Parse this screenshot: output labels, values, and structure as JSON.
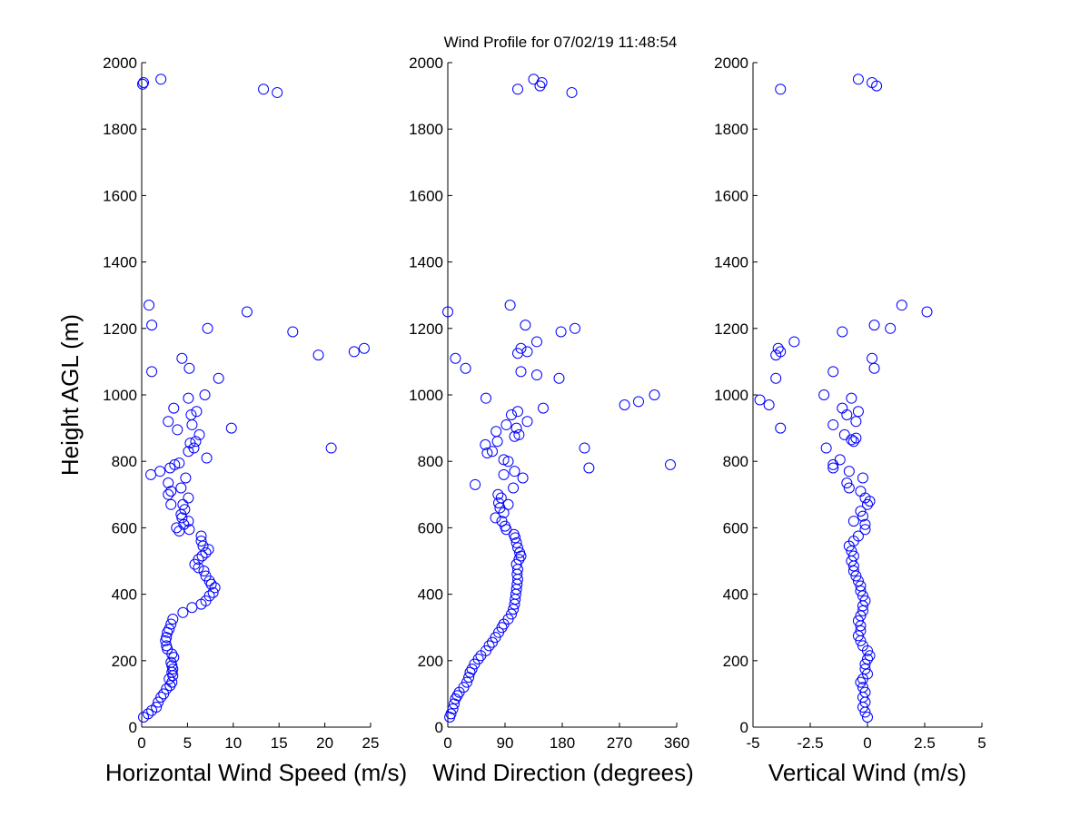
{
  "figure": {
    "title": "Wind Profile for  07/02/19 11:48:54"
  },
  "chart_data": [
    {
      "type": "scatter",
      "title": "",
      "xlabel": "Horizontal Wind Speed (m/s)",
      "ylabel": "Height AGL (m)",
      "xlim": [
        0,
        25
      ],
      "ylim": [
        0,
        2000
      ],
      "xticks": [
        0,
        5,
        10,
        15,
        20,
        25
      ],
      "xtick_labels": [
        "0",
        "5",
        "10",
        "15",
        "20",
        "25"
      ],
      "yticks": [
        0,
        200,
        400,
        600,
        800,
        1000,
        1200,
        1400,
        1600,
        1800,
        2000
      ],
      "ytick_labels": [
        "0",
        "200",
        "400",
        "600",
        "800",
        "1000",
        "1200",
        "1400",
        "1600",
        "1800",
        "2000"
      ],
      "grid": false,
      "marker_color": "#0000ff",
      "points": [
        [
          0.2,
          30
        ],
        [
          0.7,
          40
        ],
        [
          1.1,
          50
        ],
        [
          1.6,
          60
        ],
        [
          1.8,
          75
        ],
        [
          2.1,
          90
        ],
        [
          2.4,
          100
        ],
        [
          2.7,
          115
        ],
        [
          3.1,
          125
        ],
        [
          3.3,
          135
        ],
        [
          3.0,
          145
        ],
        [
          3.4,
          155
        ],
        [
          3.3,
          165
        ],
        [
          3.4,
          175
        ],
        [
          3.3,
          185
        ],
        [
          3.2,
          195
        ],
        [
          3.5,
          210
        ],
        [
          3.3,
          220
        ],
        [
          2.8,
          235
        ],
        [
          2.7,
          245
        ],
        [
          2.6,
          260
        ],
        [
          2.7,
          270
        ],
        [
          2.8,
          285
        ],
        [
          3.0,
          295
        ],
        [
          3.2,
          310
        ],
        [
          3.4,
          325
        ],
        [
          4.5,
          345
        ],
        [
          5.5,
          360
        ],
        [
          6.5,
          370
        ],
        [
          7.0,
          380
        ],
        [
          7.4,
          395
        ],
        [
          7.8,
          405
        ],
        [
          8.0,
          420
        ],
        [
          7.6,
          430
        ],
        [
          7.4,
          440
        ],
        [
          7.0,
          455
        ],
        [
          6.8,
          470
        ],
        [
          6.2,
          480
        ],
        [
          5.8,
          490
        ],
        [
          6.2,
          505
        ],
        [
          6.6,
          515
        ],
        [
          7.0,
          525
        ],
        [
          7.3,
          535
        ],
        [
          6.7,
          545
        ],
        [
          6.5,
          560
        ],
        [
          6.5,
          575
        ],
        [
          5.2,
          595
        ],
        [
          4.1,
          590
        ],
        [
          3.8,
          600
        ],
        [
          4.6,
          610
        ],
        [
          5.1,
          620
        ],
        [
          4.4,
          630
        ],
        [
          4.3,
          640
        ],
        [
          4.7,
          655
        ],
        [
          4.5,
          670
        ],
        [
          5.1,
          690
        ],
        [
          3.2,
          670
        ],
        [
          2.9,
          700
        ],
        [
          3.2,
          710
        ],
        [
          4.3,
          720
        ],
        [
          2.9,
          735
        ],
        [
          4.8,
          750
        ],
        [
          1.0,
          760
        ],
        [
          2.0,
          770
        ],
        [
          3.1,
          780
        ],
        [
          3.6,
          790
        ],
        [
          4.1,
          795
        ],
        [
          7.1,
          810
        ],
        [
          5.1,
          830
        ],
        [
          5.7,
          840
        ],
        [
          5.3,
          855
        ],
        [
          5.9,
          860
        ],
        [
          6.3,
          880
        ],
        [
          3.9,
          895
        ],
        [
          9.8,
          900
        ],
        [
          5.5,
          910
        ],
        [
          2.9,
          920
        ],
        [
          5.4,
          940
        ],
        [
          6.0,
          950
        ],
        [
          3.5,
          960
        ],
        [
          5.1,
          990
        ],
        [
          6.9,
          1000
        ],
        [
          8.4,
          1050
        ],
        [
          1.1,
          1070
        ],
        [
          5.2,
          1080
        ],
        [
          4.4,
          1110
        ],
        [
          19.3,
          1120
        ],
        [
          23.2,
          1130
        ],
        [
          24.3,
          1140
        ],
        [
          16.5,
          1190
        ],
        [
          7.2,
          1200
        ],
        [
          1.1,
          1210
        ],
        [
          11.5,
          1250
        ],
        [
          0.8,
          1270
        ],
        [
          20.7,
          840
        ],
        [
          14.8,
          1910
        ],
        [
          13.3,
          1920
        ],
        [
          0.1,
          1935
        ],
        [
          0.2,
          1940
        ],
        [
          2.1,
          1950
        ]
      ]
    },
    {
      "type": "scatter",
      "title": "",
      "xlabel": "Wind Direction (degrees)",
      "ylabel": "",
      "xlim": [
        0,
        360
      ],
      "ylim": [
        0,
        2000
      ],
      "xticks": [
        0,
        90,
        180,
        270,
        360
      ],
      "xtick_labels": [
        "0",
        "90",
        "180",
        "270",
        "360"
      ],
      "yticks": [
        0,
        200,
        400,
        600,
        800,
        1000,
        1200,
        1400,
        1600,
        1800,
        2000
      ],
      "ytick_labels": [
        "0",
        "200",
        "400",
        "600",
        "800",
        "1000",
        "1200",
        "1400",
        "1600",
        "1800",
        "2000"
      ],
      "grid": false,
      "marker_color": "#0000ff",
      "points": [
        [
          3,
          30
        ],
        [
          5,
          40
        ],
        [
          8,
          55
        ],
        [
          10,
          70
        ],
        [
          12,
          85
        ],
        [
          15,
          95
        ],
        [
          18,
          105
        ],
        [
          25,
          120
        ],
        [
          30,
          135
        ],
        [
          33,
          150
        ],
        [
          35,
          165
        ],
        [
          38,
          175
        ],
        [
          42,
          190
        ],
        [
          48,
          205
        ],
        [
          52,
          215
        ],
        [
          60,
          230
        ],
        [
          65,
          245
        ],
        [
          70,
          255
        ],
        [
          75,
          270
        ],
        [
          80,
          285
        ],
        [
          85,
          300
        ],
        [
          88,
          310
        ],
        [
          95,
          325
        ],
        [
          100,
          340
        ],
        [
          103,
          355
        ],
        [
          105,
          370
        ],
        [
          106,
          385
        ],
        [
          107,
          400
        ],
        [
          108,
          415
        ],
        [
          109,
          430
        ],
        [
          110,
          445
        ],
        [
          109,
          460
        ],
        [
          110,
          475
        ],
        [
          108,
          490
        ],
        [
          112,
          505
        ],
        [
          115,
          515
        ],
        [
          113,
          525
        ],
        [
          110,
          540
        ],
        [
          108,
          555
        ],
        [
          106,
          570
        ],
        [
          104,
          580
        ],
        [
          92,
          595
        ],
        [
          90,
          605
        ],
        [
          85,
          620
        ],
        [
          75,
          630
        ],
        [
          88,
          645
        ],
        [
          82,
          660
        ],
        [
          80,
          675
        ],
        [
          84,
          690
        ],
        [
          79,
          700
        ],
        [
          95,
          670
        ],
        [
          103,
          720
        ],
        [
          43,
          730
        ],
        [
          118,
          750
        ],
        [
          88,
          760
        ],
        [
          105,
          770
        ],
        [
          95,
          800
        ],
        [
          88,
          805
        ],
        [
          62,
          825
        ],
        [
          70,
          830
        ],
        [
          59,
          850
        ],
        [
          78,
          860
        ],
        [
          105,
          875
        ],
        [
          112,
          880
        ],
        [
          76,
          890
        ],
        [
          108,
          900
        ],
        [
          92,
          910
        ],
        [
          125,
          920
        ],
        [
          100,
          940
        ],
        [
          110,
          950
        ],
        [
          150,
          960
        ],
        [
          278,
          970
        ],
        [
          300,
          980
        ],
        [
          325,
          1000
        ],
        [
          60,
          990
        ],
        [
          350,
          790
        ],
        [
          222,
          780
        ],
        [
          215,
          840
        ],
        [
          115,
          1070
        ],
        [
          140,
          1060
        ],
        [
          175,
          1050
        ],
        [
          28,
          1080
        ],
        [
          12,
          1110
        ],
        [
          110,
          1125
        ],
        [
          125,
          1130
        ],
        [
          115,
          1140
        ],
        [
          140,
          1160
        ],
        [
          178,
          1190
        ],
        [
          200,
          1200
        ],
        [
          122,
          1210
        ],
        [
          0,
          1250
        ],
        [
          98,
          1270
        ],
        [
          195,
          1910
        ],
        [
          110,
          1920
        ],
        [
          145,
          1930
        ],
        [
          148,
          1940
        ],
        [
          135,
          1950
        ]
      ]
    },
    {
      "type": "scatter",
      "title": "",
      "xlabel": "Vertical Wind (m/s)",
      "ylabel": "",
      "xlim": [
        -5,
        5
      ],
      "ylim": [
        0,
        2000
      ],
      "xticks": [
        -5,
        -2.5,
        0,
        2.5,
        5
      ],
      "xtick_labels": [
        "-5",
        "-2.5",
        "0",
        "2.5",
        "5"
      ],
      "yticks": [
        0,
        200,
        400,
        600,
        800,
        1000,
        1200,
        1400,
        1600,
        1800,
        2000
      ],
      "ytick_labels": [
        "0",
        "200",
        "400",
        "600",
        "800",
        "1000",
        "1200",
        "1400",
        "1600",
        "1800",
        "2000"
      ],
      "grid": false,
      "marker_color": "#0000ff",
      "points": [
        [
          0.0,
          30
        ],
        [
          -0.1,
          45
        ],
        [
          -0.2,
          60
        ],
        [
          -0.1,
          75
        ],
        [
          -0.2,
          90
        ],
        [
          -0.1,
          105
        ],
        [
          -0.2,
          120
        ],
        [
          -0.3,
          135
        ],
        [
          -0.2,
          145
        ],
        [
          0.0,
          160
        ],
        [
          -0.1,
          175
        ],
        [
          -0.1,
          190
        ],
        [
          0.0,
          205
        ],
        [
          0.1,
          215
        ],
        [
          0.0,
          230
        ],
        [
          -0.2,
          245
        ],
        [
          -0.3,
          260
        ],
        [
          -0.4,
          275
        ],
        [
          -0.3,
          290
        ],
        [
          -0.3,
          305
        ],
        [
          -0.4,
          320
        ],
        [
          -0.3,
          335
        ],
        [
          -0.2,
          350
        ],
        [
          -0.2,
          365
        ],
        [
          -0.1,
          380
        ],
        [
          -0.2,
          395
        ],
        [
          -0.3,
          410
        ],
        [
          -0.3,
          425
        ],
        [
          -0.4,
          440
        ],
        [
          -0.5,
          455
        ],
        [
          -0.6,
          470
        ],
        [
          -0.6,
          485
        ],
        [
          -0.7,
          500
        ],
        [
          -0.6,
          515
        ],
        [
          -0.7,
          530
        ],
        [
          -0.8,
          545
        ],
        [
          -0.6,
          560
        ],
        [
          -0.4,
          575
        ],
        [
          -0.1,
          595
        ],
        [
          -0.1,
          610
        ],
        [
          -0.6,
          620
        ],
        [
          -0.2,
          635
        ],
        [
          -0.3,
          650
        ],
        [
          0.0,
          670
        ],
        [
          0.1,
          680
        ],
        [
          -0.1,
          690
        ],
        [
          -0.3,
          710
        ],
        [
          -0.8,
          720
        ],
        [
          -0.9,
          735
        ],
        [
          -0.2,
          750
        ],
        [
          -0.8,
          770
        ],
        [
          -1.5,
          780
        ],
        [
          -1.5,
          790
        ],
        [
          -1.2,
          805
        ],
        [
          -1.8,
          840
        ],
        [
          -0.6,
          860
        ],
        [
          -0.7,
          865
        ],
        [
          -0.5,
          870
        ],
        [
          -1.0,
          880
        ],
        [
          -3.8,
          900
        ],
        [
          -1.5,
          910
        ],
        [
          -0.5,
          920
        ],
        [
          -0.9,
          940
        ],
        [
          -0.4,
          950
        ],
        [
          -1.1,
          960
        ],
        [
          -4.3,
          970
        ],
        [
          -4.7,
          985
        ],
        [
          -0.7,
          990
        ],
        [
          -1.9,
          1000
        ],
        [
          -4.0,
          1050
        ],
        [
          -1.5,
          1070
        ],
        [
          0.3,
          1080
        ],
        [
          0.2,
          1110
        ],
        [
          -4.0,
          1120
        ],
        [
          -3.8,
          1130
        ],
        [
          -3.9,
          1140
        ],
        [
          -3.2,
          1160
        ],
        [
          -1.1,
          1190
        ],
        [
          1.0,
          1200
        ],
        [
          0.3,
          1210
        ],
        [
          2.6,
          1250
        ],
        [
          1.5,
          1270
        ],
        [
          -3.8,
          1920
        ],
        [
          0.4,
          1930
        ],
        [
          0.2,
          1940
        ],
        [
          -0.4,
          1950
        ]
      ]
    }
  ]
}
